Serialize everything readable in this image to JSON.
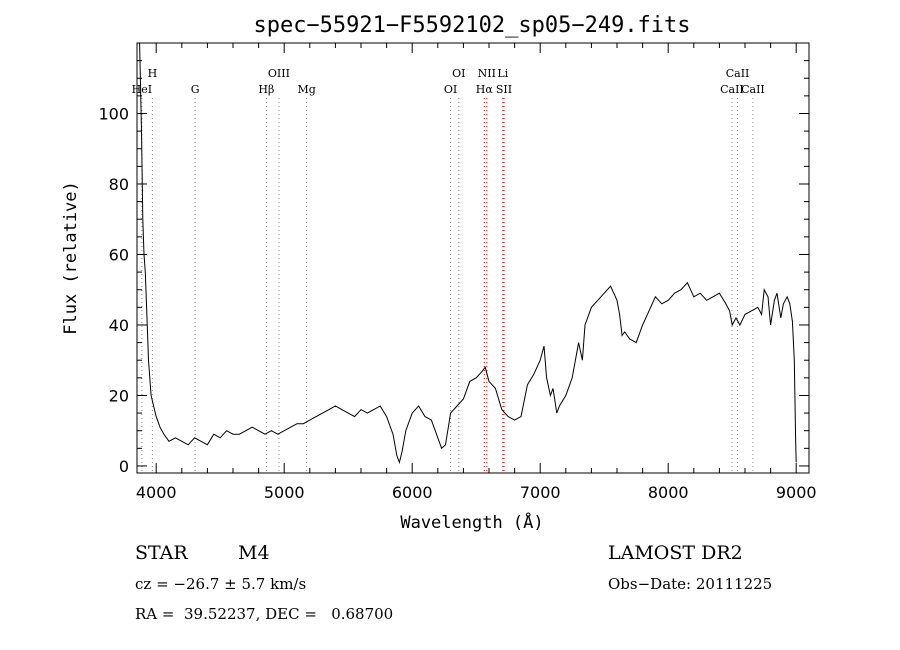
{
  "chart_data": {
    "type": "line",
    "title": "spec−55921−F5592102_sp05−249.fits",
    "xlabel": "Wavelength (Å)",
    "ylabel": "Flux (relative)",
    "xlim": [
      3850,
      9100
    ],
    "ylim": [
      -2,
      120
    ],
    "xticks": [
      4000,
      5000,
      6000,
      7000,
      8000,
      9000
    ],
    "yticks": [
      0,
      20,
      40,
      60,
      80,
      100
    ],
    "grid": false,
    "series": [
      {
        "name": "flux",
        "x": [
          3870,
          3885,
          3895,
          3905,
          3915,
          3925,
          3940,
          3960,
          3980,
          4000,
          4030,
          4060,
          4100,
          4150,
          4200,
          4250,
          4300,
          4350,
          4400,
          4450,
          4500,
          4550,
          4600,
          4650,
          4700,
          4750,
          4800,
          4850,
          4900,
          4950,
          5000,
          5050,
          5100,
          5150,
          5200,
          5250,
          5300,
          5350,
          5400,
          5450,
          5500,
          5550,
          5600,
          5650,
          5700,
          5750,
          5800,
          5850,
          5880,
          5900,
          5920,
          5950,
          6000,
          6050,
          6100,
          6150,
          6200,
          6230,
          6260,
          6300,
          6350,
          6400,
          6450,
          6500,
          6550,
          6570,
          6600,
          6650,
          6700,
          6750,
          6800,
          6850,
          6900,
          6950,
          7000,
          7030,
          7050,
          7080,
          7100,
          7130,
          7150,
          7200,
          7250,
          7300,
          7330,
          7350,
          7400,
          7450,
          7500,
          7550,
          7600,
          7620,
          7640,
          7660,
          7700,
          7750,
          7800,
          7850,
          7900,
          7950,
          8000,
          8050,
          8100,
          8150,
          8200,
          8250,
          8300,
          8350,
          8400,
          8450,
          8480,
          8500,
          8530,
          8560,
          8600,
          8650,
          8700,
          8730,
          8750,
          8780,
          8800,
          8830,
          8850,
          8880,
          8900,
          8930,
          8950,
          8970,
          8985,
          8995,
          9000
        ],
        "y": [
          120,
          95,
          70,
          60,
          55,
          45,
          30,
          20,
          17,
          14,
          11,
          9,
          7,
          8,
          7,
          6,
          8,
          7,
          6,
          9,
          8,
          10,
          9,
          9,
          10,
          11,
          10,
          9,
          10,
          9,
          10,
          11,
          12,
          12,
          13,
          14,
          15,
          16,
          17,
          16,
          15,
          14,
          16,
          15,
          16,
          17,
          14,
          9,
          3,
          1,
          4,
          10,
          15,
          17,
          14,
          13,
          8,
          5,
          6,
          15,
          17,
          19,
          24,
          25,
          27,
          28,
          24,
          22,
          16,
          14,
          13,
          14,
          23,
          26,
          30,
          34,
          25,
          20,
          22,
          15,
          17,
          20,
          25,
          35,
          30,
          40,
          45,
          47,
          49,
          51,
          47,
          43,
          37,
          38,
          36,
          35,
          40,
          44,
          48,
          46,
          47,
          49,
          50,
          52,
          48,
          49,
          47,
          48,
          49,
          46,
          44,
          40,
          42,
          40,
          43,
          44,
          45,
          43,
          50,
          48,
          40,
          47,
          49,
          42,
          46,
          48,
          46,
          41,
          30,
          8,
          1
        ]
      }
    ],
    "line_markers": [
      {
        "label": "HeI",
        "x": 3888
      },
      {
        "label": "H",
        "x": 3970
      },
      {
        "label": "G",
        "x": 4304
      },
      {
        "label": "Hβ",
        "x": 4861
      },
      {
        "label": "OIII",
        "x": 4959
      },
      {
        "label": "Mg",
        "x": 5175
      },
      {
        "label": "OI",
        "x": 6300
      },
      {
        "label": "OI",
        "x": 6364
      },
      {
        "label": "Hα",
        "x": 6563
      },
      {
        "label": "NII",
        "x": 6583
      },
      {
        "label": "SII",
        "x": 6717
      },
      {
        "label": "Li",
        "x": 6708
      },
      {
        "label": "CaII",
        "x": 8498
      },
      {
        "label": "CaII",
        "x": 8542
      },
      {
        "label": "CaII",
        "x": 8662
      }
    ]
  },
  "info": {
    "object_class": "STAR",
    "subclass": "M4",
    "survey": "LAMOST DR2",
    "redshift": "cz = −26.7 ± 5.7 km/s",
    "obs_date": "Obs−Date: 20111225",
    "coords": "RA =  39.52237, DEC =   0.68700"
  }
}
